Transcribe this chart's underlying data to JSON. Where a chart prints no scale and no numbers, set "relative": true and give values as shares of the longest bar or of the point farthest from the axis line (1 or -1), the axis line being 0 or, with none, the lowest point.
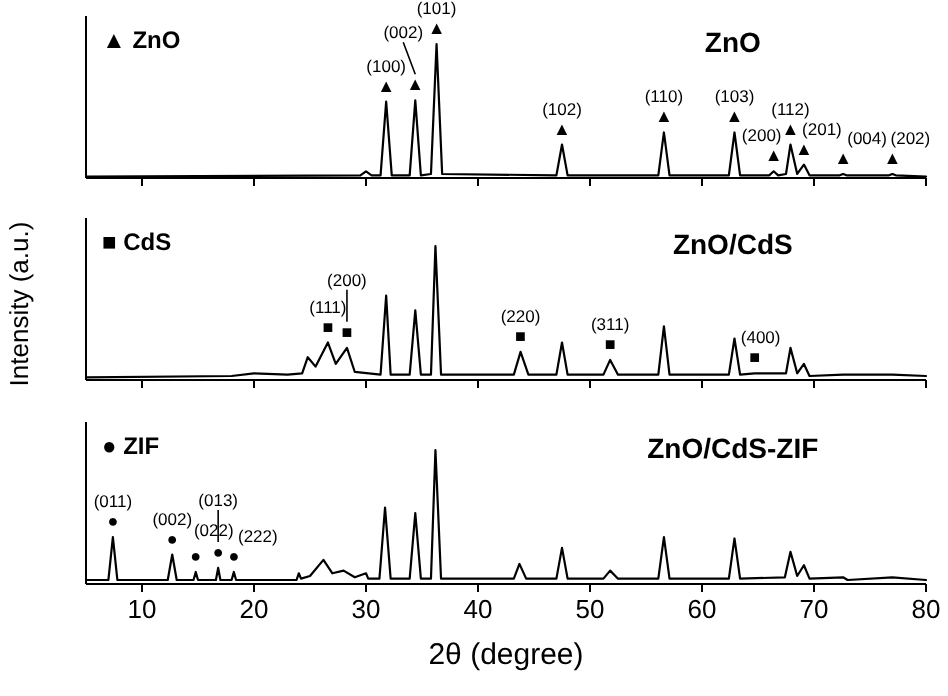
{
  "chart_data": [
    {
      "type": "line",
      "title": "ZnO",
      "relative": true,
      "xlim": [
        5,
        80
      ],
      "xticks": [
        10,
        20,
        30,
        40,
        50,
        60,
        70,
        80
      ],
      "tick_labels": false,
      "series": [
        {
          "color": "#000000",
          "x": [
            5,
            29.5,
            30,
            30.5,
            31.3,
            31.8,
            32.3,
            33.9,
            34.4,
            34.9,
            35.8,
            36.3,
            36.8,
            47,
            47.5,
            48,
            56.1,
            56.6,
            57.1,
            62.4,
            62.9,
            63.4,
            66,
            66.4,
            66.8,
            67.5,
            67.9,
            68.5,
            69.1,
            69.6,
            72.3,
            72.6,
            72.9,
            76.7,
            77,
            77.3,
            80
          ],
          "values": [
            0.01,
            0.02,
            0.05,
            0.02,
            0.02,
            0.57,
            0.02,
            0.02,
            0.58,
            0.02,
            0.03,
            1,
            0.03,
            0.02,
            0.25,
            0.02,
            0.02,
            0.34,
            0.02,
            0.02,
            0.34,
            0.02,
            0.02,
            0.05,
            0.02,
            0.03,
            0.25,
            0.03,
            0.1,
            0.02,
            0.02,
            0.03,
            0.02,
            0.02,
            0.03,
            0.02,
            0.01
          ]
        }
      ],
      "annotations": [
        "▲ ZnO",
        {
          "text": "▲",
          "x": 31.8,
          "y": 0.57
        },
        "(100)",
        {
          "text": "▲",
          "x": 34.4,
          "y": 0.58
        },
        "(002)",
        {
          "text": "▲",
          "x": 36.3,
          "y": 1
        },
        "(101)",
        {
          "text": "▲",
          "x": 47.5,
          "y": 0.25
        },
        "(102)",
        {
          "text": "▲",
          "x": 56.6,
          "y": 0.34
        },
        "(110)",
        {
          "text": "▲",
          "x": 62.9,
          "y": 0.34
        },
        "(103)",
        {
          "text": "▲",
          "x": 66.4,
          "y": 0.05
        },
        "(200)",
        {
          "text": "▲",
          "x": 67.9,
          "y": 0.25
        },
        "(112)",
        {
          "text": "▲",
          "x": 69.1,
          "y": 0.1
        },
        "(201)",
        {
          "text": "▲",
          "x": 72.6,
          "y": 0.03
        },
        "(004)",
        {
          "text": "▲",
          "x": 77,
          "y": 0.03
        },
        "(202)"
      ]
    },
    {
      "type": "line",
      "title": "ZnO/CdS",
      "ylabel": "Intensity (a.u.)",
      "relative": true,
      "xlim": [
        5,
        80
      ],
      "xticks": [
        10,
        20,
        30,
        40,
        50,
        60,
        70,
        80
      ],
      "tick_labels": false,
      "series": [
        {
          "color": "#000000",
          "x": [
            5,
            18,
            20,
            23,
            24.3,
            24.8,
            25.5,
            26.6,
            27.3,
            28.3,
            29,
            31.3,
            31.8,
            32.2,
            33.9,
            34.4,
            34.9,
            35.8,
            36.2,
            36.7,
            43.2,
            43.8,
            44.5,
            47,
            47.5,
            48,
            51.2,
            51.8,
            52.5,
            56.1,
            56.6,
            57.1,
            62.4,
            62.9,
            63.4,
            64.7,
            66.4,
            67.5,
            67.9,
            68.5,
            69.1,
            69.6,
            72.6,
            77,
            80
          ],
          "values": [
            0.02,
            0.03,
            0.05,
            0.04,
            0.05,
            0.17,
            0.1,
            0.28,
            0.12,
            0.24,
            0.06,
            0.04,
            0.63,
            0.04,
            0.04,
            0.52,
            0.04,
            0.04,
            1,
            0.04,
            0.04,
            0.21,
            0.04,
            0.04,
            0.28,
            0.04,
            0.04,
            0.15,
            0.04,
            0.04,
            0.4,
            0.04,
            0.04,
            0.31,
            0.04,
            0.05,
            0.05,
            0.05,
            0.24,
            0.05,
            0.12,
            0.03,
            0.04,
            0.04,
            0.03
          ]
        }
      ],
      "annotations": [
        "■ CdS",
        {
          "text": "■",
          "x": 26.6,
          "y": 0.28
        },
        "(111)",
        {
          "text": "■",
          "x": 28.3,
          "y": 0.24
        },
        "(200)",
        {
          "text": "■",
          "x": 43.8,
          "y": 0.21
        },
        "(220)",
        {
          "text": "■",
          "x": 51.8,
          "y": 0.15
        },
        "(311)",
        {
          "text": "■",
          "x": 64.7,
          "y": 0.05
        },
        "(400)"
      ]
    },
    {
      "type": "line",
      "title": "ZnO/CdS-ZIF",
      "xlabel": "2θ (degree)",
      "relative": true,
      "xlim": [
        5,
        80
      ],
      "xticks": [
        10,
        20,
        30,
        40,
        50,
        60,
        70,
        80
      ],
      "tick_labels": "x",
      "series": [
        {
          "color": "#000000",
          "x": [
            5,
            7,
            7.4,
            7.8,
            12.3,
            12.7,
            13.1,
            14.6,
            14.8,
            15,
            16.6,
            16.8,
            17,
            18,
            18.2,
            18.4,
            23.8,
            24,
            24.2,
            25,
            26.2,
            27,
            28,
            29,
            30,
            30.2,
            31.2,
            31.7,
            32.2,
            33.9,
            34.4,
            34.9,
            35.8,
            36.2,
            36.7,
            43.2,
            43.7,
            44.3,
            47,
            47.5,
            48,
            51.2,
            51.8,
            52.5,
            56.1,
            56.6,
            57.1,
            62.4,
            62.9,
            63.4,
            67.4,
            67.9,
            68.5,
            69.1,
            69.6,
            72.6,
            73,
            77,
            80
          ],
          "values": [
            0.03,
            0.03,
            0.35,
            0.03,
            0.03,
            0.22,
            0.03,
            0.03,
            0.09,
            0.03,
            0.03,
            0.12,
            0.03,
            0.03,
            0.09,
            0.03,
            0.03,
            0.08,
            0.04,
            0.06,
            0.18,
            0.08,
            0.1,
            0.05,
            0.08,
            0.04,
            0.04,
            0.57,
            0.04,
            0.04,
            0.53,
            0.04,
            0.04,
            1,
            0.04,
            0.04,
            0.15,
            0.04,
            0.04,
            0.27,
            0.04,
            0.04,
            0.1,
            0.04,
            0.04,
            0.35,
            0.04,
            0.04,
            0.34,
            0.04,
            0.05,
            0.24,
            0.06,
            0.14,
            0.04,
            0.05,
            0.03,
            0.05,
            0.03
          ]
        }
      ],
      "annotations": [
        "● ZIF",
        {
          "text": "●",
          "x": 7.4,
          "y": 0.35
        },
        "(011)",
        {
          "text": "●",
          "x": 12.7,
          "y": 0.22
        },
        "(002)",
        {
          "text": "●",
          "x": 14.8,
          "y": 0.09
        },
        "(022)",
        {
          "text": "●",
          "x": 16.8,
          "y": 0.12
        },
        "(013)",
        {
          "text": "●",
          "x": 18.2,
          "y": 0.09
        },
        "(222)"
      ]
    }
  ]
}
